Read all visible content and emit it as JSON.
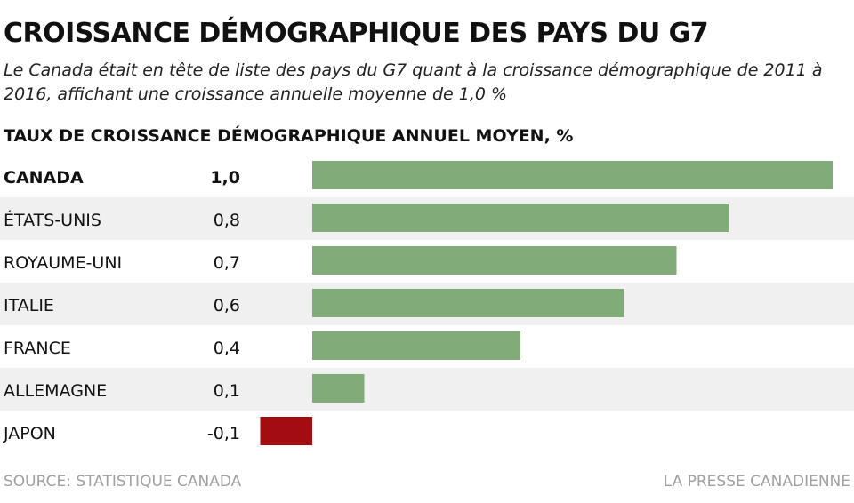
{
  "header": {
    "title": "CROISSANCE DÉMOGRAPHIQUE DES PAYS DU G7",
    "subtitle": "Le Canada était en tête de liste des pays du G7 quant à la croissance démographique de 2011 à 2016, affichant une croissance annuelle moyenne de 1,0 %"
  },
  "chart_data": {
    "type": "bar",
    "orientation": "horizontal",
    "title": "TAUX DE CROISSANCE DÉMOGRAPHIQUE ANNUEL MOYEN, %",
    "categories": [
      "CANADA",
      "ÉTATS-UNIS",
      "ROYAUME-UNI",
      "ITALIE",
      "FRANCE",
      "ALLEMAGNE",
      "JAPON"
    ],
    "values": [
      1.0,
      0.8,
      0.7,
      0.6,
      0.4,
      0.1,
      -0.1
    ],
    "value_labels": [
      "1,0",
      "0,8",
      "0,7",
      "0,6",
      "0,4",
      "0,1",
      "-0,1"
    ],
    "highlight_category": "CANADA",
    "colors": {
      "positive": "#82ab7a",
      "negative": "#a30d12",
      "row_alt": "#f0f0f0"
    },
    "grid": false,
    "legend": "none"
  },
  "footer": {
    "source": "SOURCE: STATISTIQUE CANADA",
    "credit": "LA PRESSE CANADIENNE"
  }
}
